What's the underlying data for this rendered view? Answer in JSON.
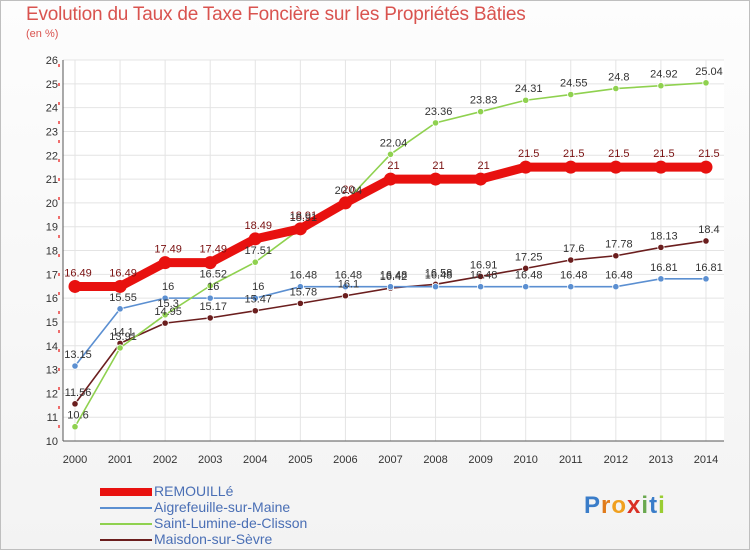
{
  "title": "Evolution du Taux de Taxe Foncière sur les Propriétés Bâties",
  "unit_label": "(en %)",
  "logo": {
    "text": "Proxiti",
    "letters": [
      "P",
      "r",
      "o",
      "x",
      "i",
      "t",
      "i"
    ],
    "colors": [
      "#3a7dc9",
      "#e07b1a",
      "#f0a020",
      "#d93025",
      "#6aa84f",
      "#3a7dc9",
      "#9acd32"
    ]
  },
  "chart_data": {
    "type": "line",
    "x": [
      "2000",
      "2001",
      "2002",
      "2003",
      "2004",
      "2005",
      "2006",
      "2007",
      "2008",
      "2009",
      "2010",
      "2011",
      "2012",
      "2013",
      "2014"
    ],
    "ylim": [
      10,
      26
    ],
    "yticks": [
      10,
      11,
      12,
      13,
      14,
      15,
      16,
      17,
      18,
      19,
      20,
      21,
      22,
      23,
      24,
      25,
      26
    ],
    "grid": true,
    "legend_position": "bottom-left",
    "series": [
      {
        "name": "REMOUILLé",
        "color": "#e8110f",
        "values": [
          16.49,
          16.49,
          17.49,
          17.49,
          18.49,
          18.91,
          20,
          21,
          21,
          21,
          21.5,
          21.5,
          21.5,
          21.5,
          21.5
        ],
        "labels": [
          "16.49",
          "16.49",
          "17.49",
          "17.49",
          "18.49",
          "18.91",
          "20",
          "21",
          "21",
          "21",
          "21.5",
          "21.5",
          "21.5",
          "21.5",
          "21.5"
        ]
      },
      {
        "name": "Aigrefeuille-sur-Maine",
        "color": "#5b8fd1",
        "values": [
          13.15,
          15.55,
          16,
          16,
          16,
          16.48,
          16.48,
          16.48,
          16.48,
          16.48,
          16.48,
          16.48,
          16.48,
          16.81,
          16.81
        ],
        "labels": [
          "13.15",
          "15.55",
          "16",
          "16",
          "16",
          "16.48",
          "16.48",
          "16.48",
          "16.48",
          "16.48",
          "16.48",
          "16.48",
          "16.48",
          "16.81",
          "16.81"
        ]
      },
      {
        "name": "Saint-Lumine-de-Clisson",
        "color": "#8fd14f",
        "values": [
          10.6,
          13.91,
          15.3,
          16.52,
          17.51,
          18.91,
          20.04,
          22.04,
          23.36,
          23.83,
          24.31,
          24.55,
          24.8,
          24.92,
          25.04
        ],
        "labels": [
          "10.6",
          "13.91",
          "15.3",
          "16.52",
          "17.51",
          "18.91",
          "20.04",
          "22.04",
          "23.36",
          "23.83",
          "24.31",
          "24.55",
          "24.8",
          "24.92",
          "25.04"
        ]
      },
      {
        "name": "Maisdon-sur-Sèvre",
        "color": "#6b1e1e",
        "values": [
          11.56,
          14.1,
          14.95,
          15.17,
          15.47,
          15.78,
          16.1,
          16.42,
          16.58,
          16.91,
          17.25,
          17.6,
          17.78,
          18.13,
          18.4
        ],
        "labels": [
          "11.56",
          "14.1",
          "14.95",
          "15.17",
          "15.47",
          "15.78",
          "16.1",
          "16.42",
          "16.58",
          "16.91",
          "17.25",
          "17.6",
          "17.78",
          "18.13",
          "18.4"
        ]
      }
    ]
  }
}
